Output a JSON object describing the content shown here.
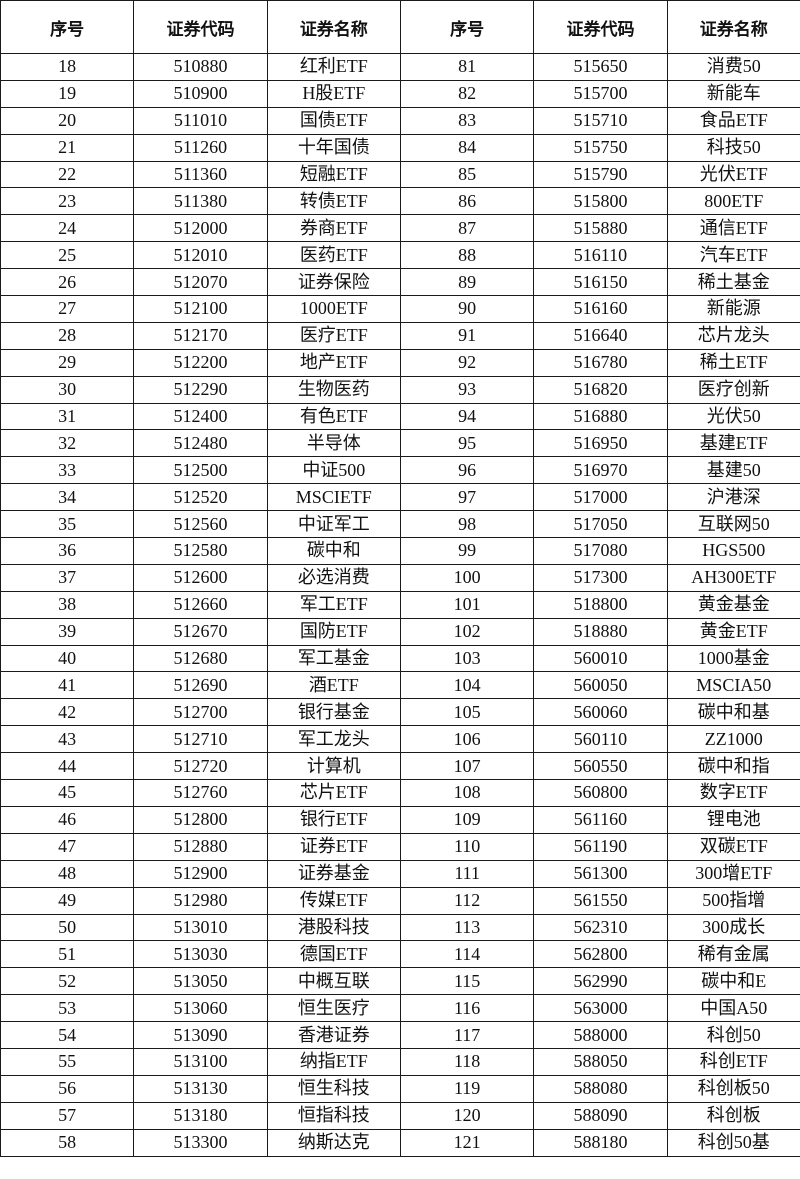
{
  "headers": [
    "序号",
    "证券代码",
    "证券名称",
    "序号",
    "证券代码",
    "证券名称"
  ],
  "rows": [
    [
      "18",
      "510880",
      "红利ETF",
      "81",
      "515650",
      "消费50"
    ],
    [
      "19",
      "510900",
      "H股ETF",
      "82",
      "515700",
      "新能车"
    ],
    [
      "20",
      "511010",
      "国债ETF",
      "83",
      "515710",
      "食品ETF"
    ],
    [
      "21",
      "511260",
      "十年国债",
      "84",
      "515750",
      "科技50"
    ],
    [
      "22",
      "511360",
      "短融ETF",
      "85",
      "515790",
      "光伏ETF"
    ],
    [
      "23",
      "511380",
      "转债ETF",
      "86",
      "515800",
      "800ETF"
    ],
    [
      "24",
      "512000",
      "券商ETF",
      "87",
      "515880",
      "通信ETF"
    ],
    [
      "25",
      "512010",
      "医药ETF",
      "88",
      "516110",
      "汽车ETF"
    ],
    [
      "26",
      "512070",
      "证券保险",
      "89",
      "516150",
      "稀土基金"
    ],
    [
      "27",
      "512100",
      "1000ETF",
      "90",
      "516160",
      "新能源"
    ],
    [
      "28",
      "512170",
      "医疗ETF",
      "91",
      "516640",
      "芯片龙头"
    ],
    [
      "29",
      "512200",
      "地产ETF",
      "92",
      "516780",
      "稀土ETF"
    ],
    [
      "30",
      "512290",
      "生物医药",
      "93",
      "516820",
      "医疗创新"
    ],
    [
      "31",
      "512400",
      "有色ETF",
      "94",
      "516880",
      "光伏50"
    ],
    [
      "32",
      "512480",
      "半导体",
      "95",
      "516950",
      "基建ETF"
    ],
    [
      "33",
      "512500",
      "中证500",
      "96",
      "516970",
      "基建50"
    ],
    [
      "34",
      "512520",
      "MSCIETF",
      "97",
      "517000",
      "沪港深"
    ],
    [
      "35",
      "512560",
      "中证军工",
      "98",
      "517050",
      "互联网50"
    ],
    [
      "36",
      "512580",
      "碳中和",
      "99",
      "517080",
      "HGS500"
    ],
    [
      "37",
      "512600",
      "必选消费",
      "100",
      "517300",
      "AH300ETF"
    ],
    [
      "38",
      "512660",
      "军工ETF",
      "101",
      "518800",
      "黄金基金"
    ],
    [
      "39",
      "512670",
      "国防ETF",
      "102",
      "518880",
      "黄金ETF"
    ],
    [
      "40",
      "512680",
      "军工基金",
      "103",
      "560010",
      "1000基金"
    ],
    [
      "41",
      "512690",
      "酒ETF",
      "104",
      "560050",
      "MSCIA50"
    ],
    [
      "42",
      "512700",
      "银行基金",
      "105",
      "560060",
      "碳中和基"
    ],
    [
      "43",
      "512710",
      "军工龙头",
      "106",
      "560110",
      "ZZ1000"
    ],
    [
      "44",
      "512720",
      "计算机",
      "107",
      "560550",
      "碳中和指"
    ],
    [
      "45",
      "512760",
      "芯片ETF",
      "108",
      "560800",
      "数字ETF"
    ],
    [
      "46",
      "512800",
      "银行ETF",
      "109",
      "561160",
      "锂电池"
    ],
    [
      "47",
      "512880",
      "证券ETF",
      "110",
      "561190",
      "双碳ETF"
    ],
    [
      "48",
      "512900",
      "证券基金",
      "111",
      "561300",
      "300增ETF"
    ],
    [
      "49",
      "512980",
      "传媒ETF",
      "112",
      "561550",
      "500指增"
    ],
    [
      "50",
      "513010",
      "港股科技",
      "113",
      "562310",
      "300成长"
    ],
    [
      "51",
      "513030",
      "德国ETF",
      "114",
      "562800",
      "稀有金属"
    ],
    [
      "52",
      "513050",
      "中概互联",
      "115",
      "562990",
      "碳中和E"
    ],
    [
      "53",
      "513060",
      "恒生医疗",
      "116",
      "563000",
      "中国A50"
    ],
    [
      "54",
      "513090",
      "香港证券",
      "117",
      "588000",
      "科创50"
    ],
    [
      "55",
      "513100",
      "纳指ETF",
      "118",
      "588050",
      "科创ETF"
    ],
    [
      "56",
      "513130",
      "恒生科技",
      "119",
      "588080",
      "科创板50"
    ],
    [
      "57",
      "513180",
      "恒指科技",
      "120",
      "588090",
      "科创板"
    ],
    [
      "58",
      "513300",
      "纳斯达克",
      "121",
      "588180",
      "科创50基"
    ]
  ]
}
